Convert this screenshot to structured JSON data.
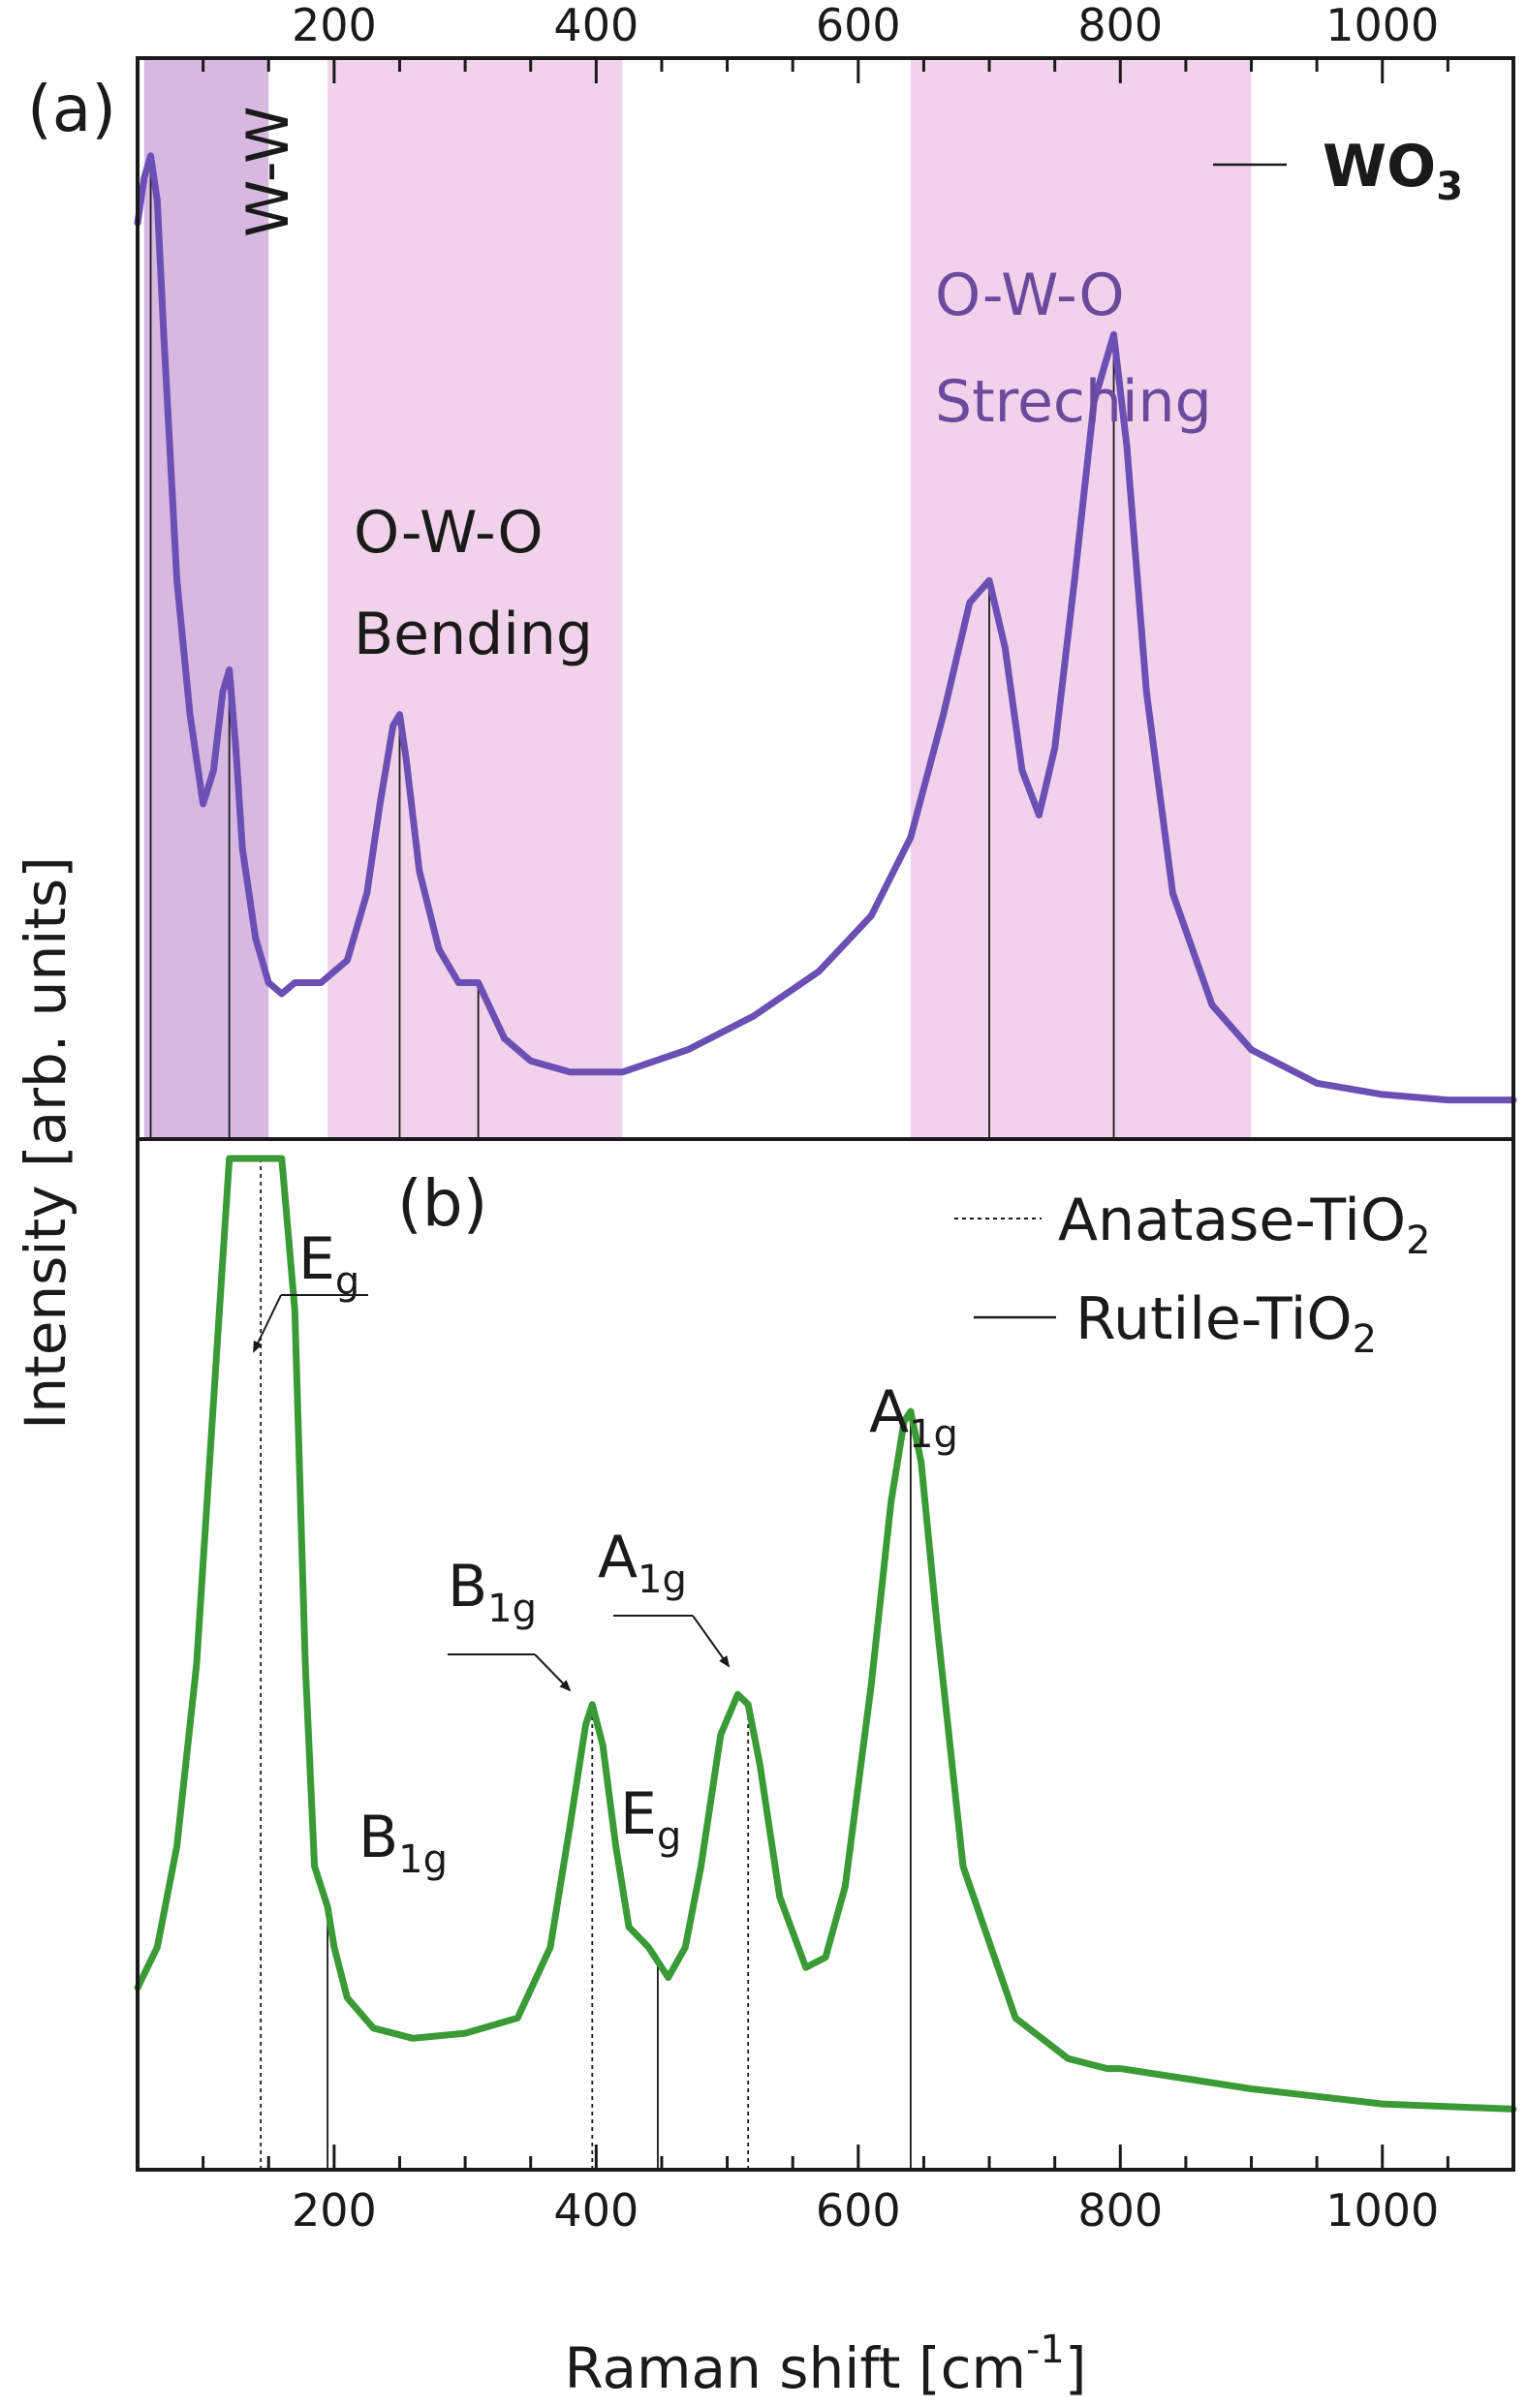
{
  "chart_data": [
    {
      "panel_label": "(a)",
      "type": "line",
      "xlabel": "Raman shift [cm-1]",
      "ylabel": "Intensity [arb. units]",
      "xlim": [
        50,
        1100
      ],
      "xticks": [
        200,
        400,
        600,
        800,
        1000
      ],
      "x_tick_labels_top": [
        "200",
        "400",
        "600",
        "800",
        "1000"
      ],
      "legend": [
        {
          "name": "WO",
          "subscript": "3",
          "style": "solid"
        }
      ],
      "legend_position": "top-right",
      "regions": [
        {
          "label": "W-W",
          "x_range": [
            55,
            150
          ],
          "color": "#d7b8e0"
        },
        {
          "label_lines": [
            "O-W-O",
            "Bending"
          ],
          "x_range": [
            195,
            420
          ],
          "color": "#f0d3ea"
        },
        {
          "label_lines": [
            "O-W-O",
            "Streching"
          ],
          "x_range": [
            640,
            900
          ],
          "color": "#f0d3ea"
        }
      ],
      "peak_lines": [
        60,
        120,
        250,
        310,
        700,
        795
      ],
      "series": [
        {
          "color": "#6b4fb5",
          "x": [
            50,
            55,
            60,
            65,
            70,
            80,
            90,
            100,
            108,
            115,
            120,
            125,
            130,
            140,
            150,
            160,
            170,
            190,
            210,
            225,
            235,
            245,
            250,
            255,
            265,
            280,
            295,
            305,
            310,
            318,
            330,
            350,
            380,
            420,
            470,
            520,
            570,
            610,
            640,
            665,
            685,
            700,
            712,
            725,
            738,
            750,
            765,
            780,
            795,
            805,
            820,
            840,
            870,
            900,
            950,
            1000,
            1050,
            1100
          ],
          "y": [
            0.82,
            0.86,
            0.88,
            0.84,
            0.72,
            0.5,
            0.38,
            0.3,
            0.33,
            0.4,
            0.42,
            0.35,
            0.26,
            0.18,
            0.14,
            0.13,
            0.14,
            0.14,
            0.16,
            0.22,
            0.3,
            0.37,
            0.38,
            0.34,
            0.24,
            0.17,
            0.14,
            0.14,
            0.14,
            0.12,
            0.09,
            0.07,
            0.06,
            0.06,
            0.08,
            0.11,
            0.15,
            0.2,
            0.27,
            0.38,
            0.48,
            0.5,
            0.44,
            0.33,
            0.29,
            0.35,
            0.5,
            0.66,
            0.72,
            0.62,
            0.4,
            0.22,
            0.12,
            0.08,
            0.05,
            0.04,
            0.035,
            0.035
          ]
        }
      ]
    },
    {
      "panel_label": "(b)",
      "type": "line",
      "xlabel": "Raman shift [cm-1]",
      "ylabel": "Intensity [arb. units]",
      "xlim": [
        50,
        1100
      ],
      "xticks": [
        200,
        400,
        600,
        800,
        1000
      ],
      "x_tick_labels": [
        "200",
        "400",
        "600",
        "800",
        "1000"
      ],
      "legend": [
        {
          "name": "Anatase-TiO",
          "subscript": "2",
          "style": "dotted"
        },
        {
          "name": "Rutile-TiO",
          "subscript": "2",
          "style": "solid"
        }
      ],
      "legend_position": "top-right",
      "peak_lines": [
        {
          "x": 144,
          "style": "dotted"
        },
        {
          "x": 195,
          "style": "solid"
        },
        {
          "x": 397,
          "style": "dotted"
        },
        {
          "x": 447,
          "style": "solid"
        },
        {
          "x": 516,
          "style": "dotted"
        },
        {
          "x": 640,
          "style": "solid"
        }
      ],
      "peak_labels": [
        {
          "text": "E",
          "sub": "g"
        },
        {
          "text": "B",
          "sub": "1g"
        },
        {
          "text": "B",
          "sub": "1g"
        },
        {
          "text": "E",
          "sub": "g"
        },
        {
          "text": "A",
          "sub": "1g"
        },
        {
          "text": "A",
          "sub": "1g"
        }
      ],
      "series": [
        {
          "color": "#3a9a35",
          "x": [
            50,
            65,
            80,
            95,
            110,
            120,
            130,
            140,
            150,
            160,
            170,
            178,
            185,
            195,
            200,
            210,
            230,
            260,
            300,
            340,
            365,
            380,
            392,
            397,
            405,
            415,
            425,
            440,
            455,
            468,
            480,
            495,
            508,
            516,
            525,
            540,
            560,
            575,
            590,
            610,
            625,
            635,
            640,
            648,
            660,
            680,
            720,
            760,
            790,
            800,
            850,
            900,
            1000,
            1100
          ],
          "y": [
            0.18,
            0.22,
            0.32,
            0.5,
            0.8,
            1.0,
            1.0,
            1.0,
            1.0,
            1.0,
            0.85,
            0.5,
            0.3,
            0.26,
            0.22,
            0.17,
            0.14,
            0.13,
            0.135,
            0.15,
            0.22,
            0.34,
            0.44,
            0.46,
            0.42,
            0.32,
            0.24,
            0.22,
            0.19,
            0.22,
            0.3,
            0.43,
            0.47,
            0.46,
            0.4,
            0.27,
            0.2,
            0.21,
            0.28,
            0.48,
            0.66,
            0.74,
            0.75,
            0.7,
            0.54,
            0.3,
            0.15,
            0.11,
            0.1,
            0.1,
            0.09,
            0.08,
            0.065,
            0.06
          ]
        }
      ]
    }
  ]
}
